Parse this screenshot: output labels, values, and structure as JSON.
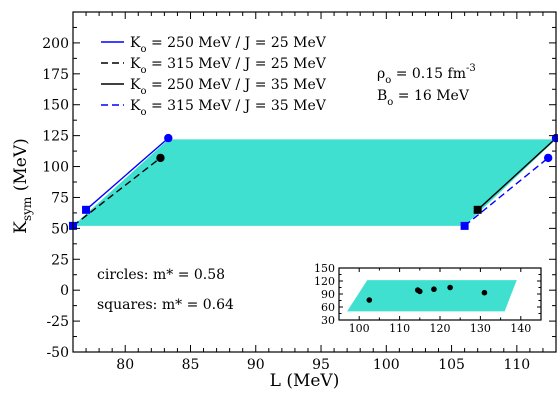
{
  "chart_data": {
    "type": "line",
    "xlabel": "L (MeV)",
    "ylabel": "K",
    "ylabel_sub": "sym",
    "ylabel_unit": " (MeV)",
    "xlim": [
      76,
      113
    ],
    "ylim": [
      -50,
      225
    ],
    "xticks": [
      80,
      85,
      90,
      95,
      100,
      105,
      110
    ],
    "yticks": [
      -50,
      -25,
      0,
      25,
      50,
      75,
      100,
      125,
      150,
      175,
      200
    ],
    "fill_color": "#40e0d0",
    "band": [
      [
        76,
        52
      ],
      [
        106,
        52
      ],
      [
        113,
        122
      ],
      [
        83.3,
        122
      ]
    ],
    "series": [
      {
        "name": "K_o = 250 MeV / J = 25 MeV",
        "color": "#0000ff",
        "dash": "solid",
        "points": [
          [
            77,
            65
          ],
          [
            83.3,
            123
          ]
        ]
      },
      {
        "name": "K_o = 315 MeV / J = 25 MeV",
        "color": "#000000",
        "dash": "dashed",
        "points": [
          [
            76,
            52
          ],
          [
            82.7,
            107
          ]
        ]
      },
      {
        "name": "K_o = 250 MeV / J = 35 MeV",
        "color": "#000000",
        "dash": "solid",
        "points": [
          [
            107,
            65
          ],
          [
            113,
            123
          ]
        ]
      },
      {
        "name": "K_o = 315 MeV / J = 35 MeV",
        "color": "#0000ff",
        "dash": "dashed",
        "points": [
          [
            106,
            52
          ],
          [
            112.4,
            107
          ]
        ]
      }
    ],
    "markers": [
      {
        "shape": "square",
        "color": "#0000ff",
        "x": 77,
        "y": 65
      },
      {
        "shape": "circle",
        "color": "#0000ff",
        "x": 83.3,
        "y": 123
      },
      {
        "shape": "square",
        "color": "#0000ff",
        "x": 76,
        "y": 52
      },
      {
        "shape": "circle",
        "color": "#000000",
        "x": 82.7,
        "y": 107
      },
      {
        "shape": "square",
        "color": "#000000",
        "x": 107,
        "y": 65
      },
      {
        "shape": "circle",
        "color": "#0000ff",
        "x": 113,
        "y": 123
      },
      {
        "shape": "square",
        "color": "#0000ff",
        "x": 106,
        "y": 52
      },
      {
        "shape": "circle",
        "color": "#0000ff",
        "x": 112.4,
        "y": 107
      }
    ],
    "legend": [
      {
        "pre": "K",
        "sub": "o",
        "post": " = 250 MeV / J = 25 MeV"
      },
      {
        "pre": "K",
        "sub": "o",
        "post": " = 315 MeV / J = 25 MeV"
      },
      {
        "pre": "K",
        "sub": "o",
        "post": " = 250 MeV / J = 35 MeV"
      },
      {
        "pre": "K",
        "sub": "o",
        "post": " = 315 MeV / J = 35 MeV"
      }
    ],
    "params": [
      {
        "pre": "ρ",
        "sub": "o",
        "post": " = 0.15 fm",
        "sup": "-3"
      },
      {
        "pre": "B",
        "sub": "o",
        "post": " = 16 MeV",
        "sup": ""
      }
    ],
    "annotations": [
      "circles: m* = 0.58",
      "squares: m* = 0.64"
    ],
    "inset": {
      "xlim": [
        95,
        145
      ],
      "ylim": [
        30,
        150
      ],
      "xticks": [
        100,
        110,
        120,
        130,
        140
      ],
      "yticks": [
        30,
        60,
        90,
        120,
        150
      ],
      "band": [
        [
          97,
          50
        ],
        [
          136,
          50
        ],
        [
          139,
          122
        ],
        [
          102,
          122
        ]
      ],
      "points": [
        [
          102.5,
          76
        ],
        [
          114.5,
          99
        ],
        [
          115,
          96
        ],
        [
          118.5,
          101
        ],
        [
          122.5,
          105
        ],
        [
          131,
          93
        ]
      ]
    }
  }
}
